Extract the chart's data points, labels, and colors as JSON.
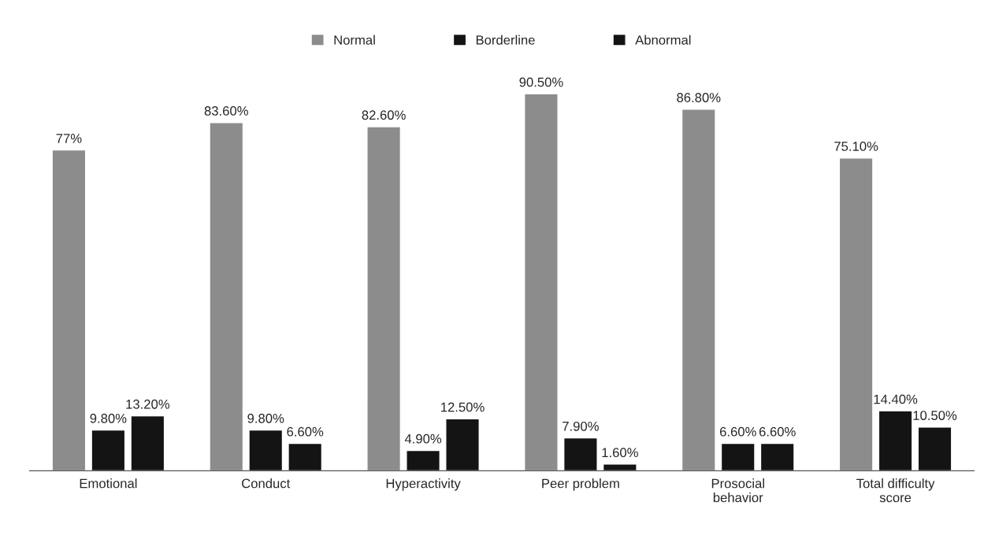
{
  "chart_data": {
    "type": "bar",
    "categories": [
      "Emotional",
      "Conduct",
      "Hyperactivity",
      "Peer problem",
      "Prosocial\nbehavior",
      "Total difficulty\nscore"
    ],
    "series": [
      {
        "name": "Normal",
        "color": "#8c8c8c",
        "values": [
          77,
          83.6,
          82.6,
          90.5,
          86.8,
          75.1
        ],
        "value_labels": [
          "77%",
          "83.60%",
          "82.60%",
          "90.50%",
          "86.80%",
          "75.10%"
        ]
      },
      {
        "name": "Borderline",
        "color": "#141414",
        "values": [
          9.8,
          9.8,
          4.9,
          7.9,
          6.6,
          14.4
        ],
        "value_labels": [
          "9.80%",
          "9.80%",
          "4.90%",
          "7.90%",
          "6.60%",
          "14.40%"
        ]
      },
      {
        "name": "Abnormal",
        "color": "#141414",
        "values": [
          13.2,
          6.6,
          12.5,
          1.6,
          6.6,
          10.5
        ],
        "value_labels": [
          "13.20%",
          "6.60%",
          "12.50%",
          "1.60%",
          "6.60%",
          "10.50%"
        ]
      }
    ],
    "legend": "top",
    "grid": false
  }
}
